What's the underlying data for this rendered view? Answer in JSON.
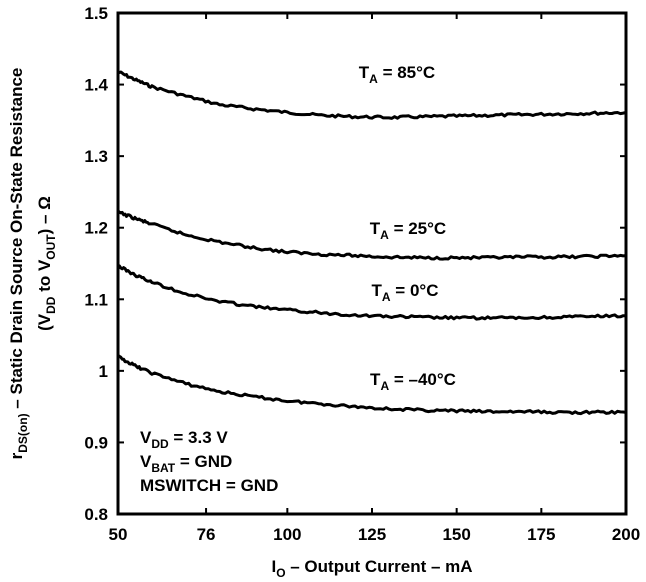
{
  "chart_data": {
    "type": "line",
    "xlabel": {
      "main": "I",
      "sub": "O",
      "rest": " – Output Current – mA"
    },
    "ylabel": {
      "line1": {
        "pre": "r",
        "sub": "DS(on)",
        "post": " – Static Drain Source On-State Resistance"
      },
      "line2": {
        "open": "(V",
        "sub1": "DD",
        "mid": " to V",
        "sub2": "OUT",
        "close": ") – Ω"
      }
    },
    "xlim": [
      50,
      200
    ],
    "ylim": [
      0.8,
      1.5
    ],
    "x_ticks": [
      50,
      76,
      100,
      125,
      150,
      175,
      200
    ],
    "x_tick_labels": [
      "50",
      "76",
      "100",
      "125",
      "150",
      "175",
      "200"
    ],
    "y_ticks": [
      0.8,
      0.9,
      1.0,
      1.1,
      1.2,
      1.3,
      1.4,
      1.5
    ],
    "y_tick_labels": [
      "0.8",
      "0.9",
      "1",
      "1.1",
      "1.2",
      "1.3",
      "1.4",
      "1.5"
    ],
    "grid": false,
    "series": [
      {
        "name": "85°C",
        "label": {
          "pre": "T",
          "sub": "A",
          "post": " = 85°C"
        },
        "x": [
          50,
          55,
          60,
          70,
          80,
          90,
          100,
          110,
          120,
          130,
          140,
          150,
          160,
          170,
          180,
          190,
          200
        ],
        "y": [
          1.418,
          1.407,
          1.397,
          1.384,
          1.372,
          1.366,
          1.361,
          1.357,
          1.355,
          1.354,
          1.355,
          1.356,
          1.357,
          1.358,
          1.359,
          1.36,
          1.361
        ]
      },
      {
        "name": "25°C",
        "label": {
          "pre": "T",
          "sub": "A",
          "post": " = 25°C"
        },
        "x": [
          50,
          55,
          60,
          70,
          80,
          90,
          100,
          110,
          120,
          130,
          140,
          150,
          160,
          170,
          180,
          190,
          200
        ],
        "y": [
          1.222,
          1.213,
          1.205,
          1.19,
          1.18,
          1.172,
          1.166,
          1.163,
          1.161,
          1.159,
          1.158,
          1.158,
          1.158,
          1.159,
          1.159,
          1.16,
          1.161
        ]
      },
      {
        "name": "0°C",
        "label": {
          "pre": "T",
          "sub": "A",
          "post": " = 0°C"
        },
        "x": [
          50,
          55,
          60,
          70,
          80,
          90,
          100,
          110,
          120,
          130,
          140,
          150,
          160,
          170,
          180,
          190,
          200
        ],
        "y": [
          1.147,
          1.134,
          1.124,
          1.108,
          1.097,
          1.09,
          1.085,
          1.081,
          1.078,
          1.076,
          1.075,
          1.074,
          1.074,
          1.074,
          1.075,
          1.076,
          1.077
        ]
      },
      {
        "name": "-40°C",
        "label": {
          "pre": "T",
          "sub": "A",
          "post": " = –40°C"
        },
        "x": [
          50,
          55,
          60,
          70,
          80,
          90,
          100,
          110,
          120,
          130,
          140,
          150,
          160,
          170,
          180,
          190,
          200
        ],
        "y": [
          1.02,
          1.007,
          0.997,
          0.982,
          0.971,
          0.964,
          0.958,
          0.954,
          0.95,
          0.947,
          0.945,
          0.944,
          0.943,
          0.943,
          0.942,
          0.942,
          0.942
        ]
      }
    ],
    "annotations": [
      {
        "pre": "V",
        "sub": "DD",
        "post": " = 3.3 V"
      },
      {
        "pre": "V",
        "sub": "BAT",
        "post": " = GND"
      },
      {
        "pre": "MSWITCH = GND",
        "sub": "",
        "post": ""
      }
    ]
  }
}
